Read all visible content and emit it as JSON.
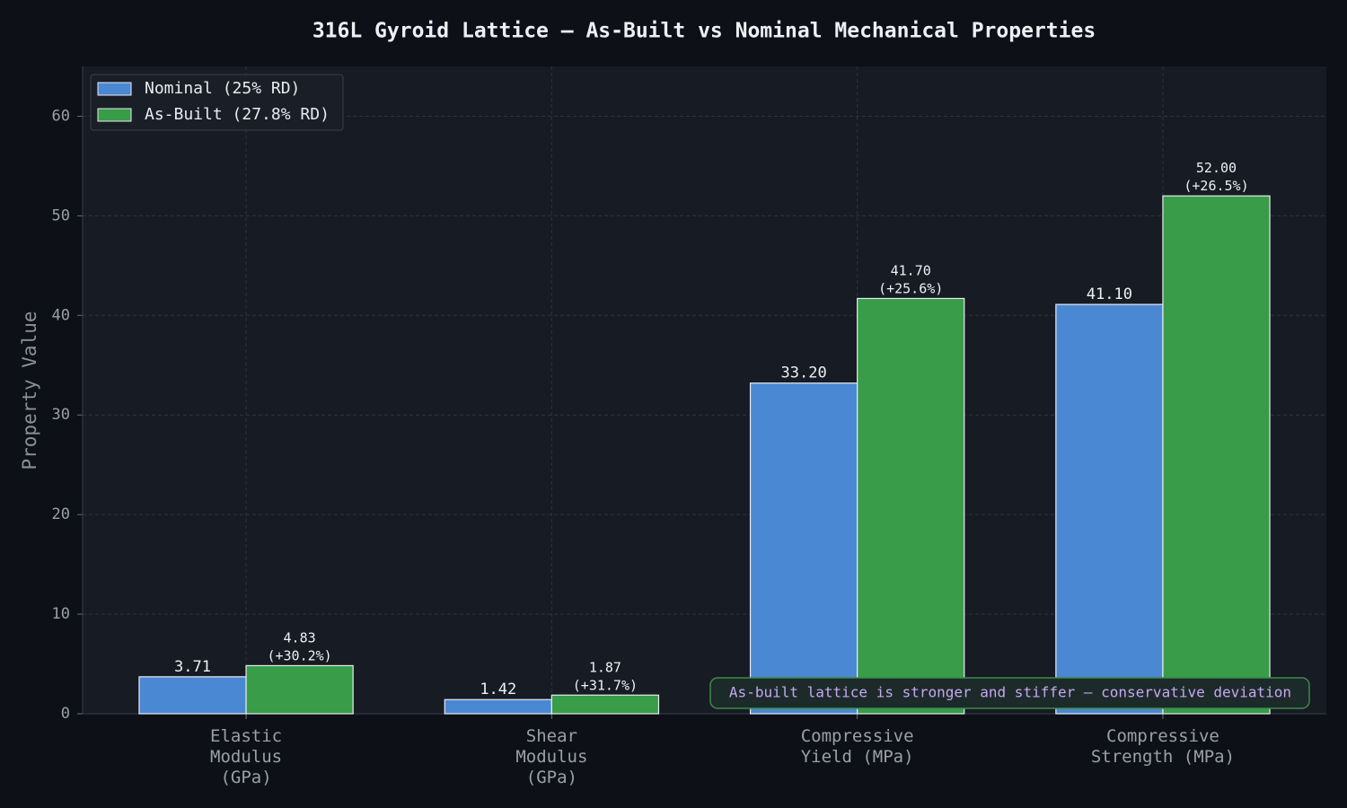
{
  "chart_data": {
    "type": "bar",
    "title": "316L Gyroid Lattice — As-Built vs Nominal Mechanical Properties",
    "categories": [
      "Elastic\nModulus\n(GPa)",
      "Shear\nModulus\n(GPa)",
      "Compressive\nYield (MPa)",
      "Compressive\nStrength (MPa)"
    ],
    "series": [
      {
        "name": "Nominal (25% RD)",
        "color": "#4a88d4",
        "values": [
          3.71,
          1.42,
          33.2,
          41.1
        ],
        "value_labels": [
          "3.71",
          "1.42",
          "33.20",
          "41.10"
        ]
      },
      {
        "name": "As-Built (27.8% RD)",
        "color": "#389c48",
        "values": [
          4.83,
          1.87,
          41.7,
          52.0
        ],
        "value_labels": [
          "4.83\n(+30.2%)",
          "1.87\n(+31.7%)",
          "41.70\n(+25.6%)",
          "52.00\n(+26.5%)"
        ]
      }
    ],
    "y_label": "Property Value",
    "ylim": [
      0,
      65
    ],
    "yticks": [
      0,
      10,
      20,
      30,
      40,
      50,
      60
    ],
    "grid": true,
    "legend": "upper-left",
    "annotation": "As-built lattice is stronger and stiffer — conservative deviation"
  }
}
